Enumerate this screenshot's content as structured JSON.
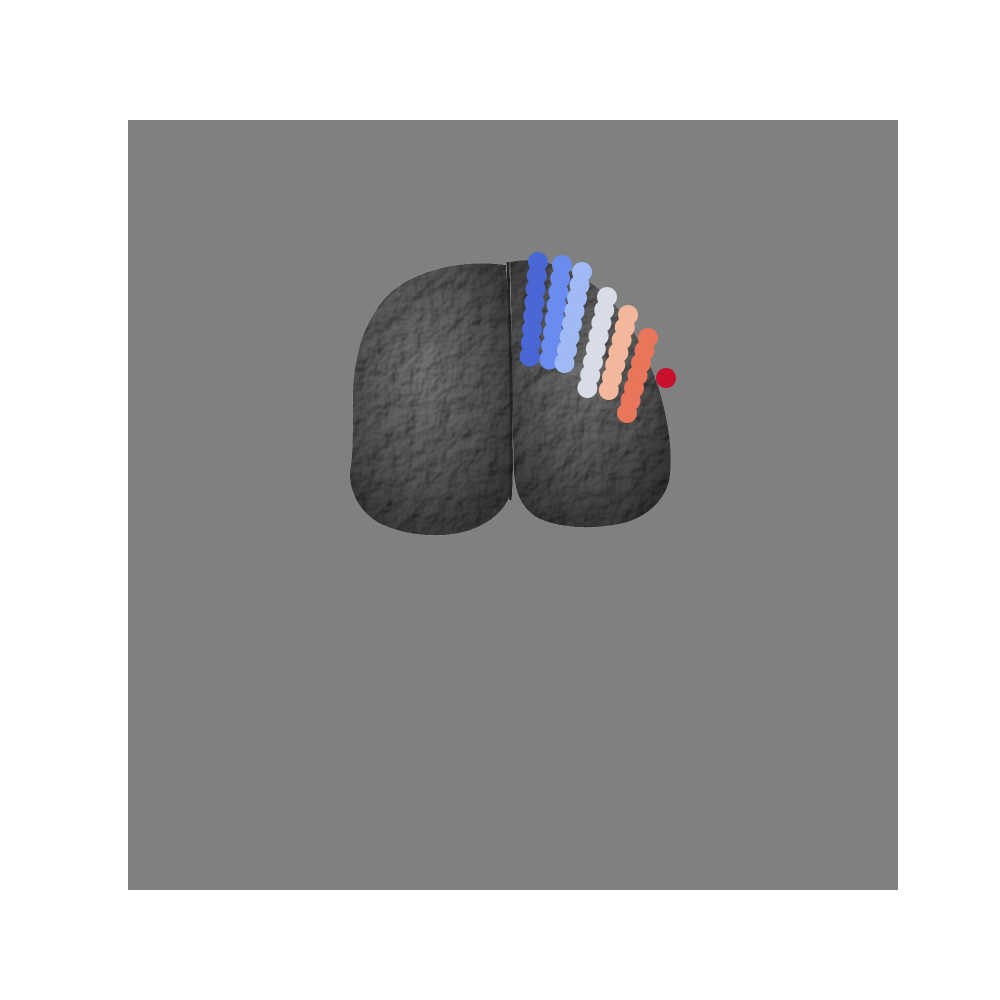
{
  "scene": {
    "background_color": "#808080",
    "page_color": "#ffffff",
    "brain_color": "#5e5e5e",
    "brain_shadow_color": "#3d3d3d",
    "brain_highlight_color": "#8a8a8a"
  },
  "electrodes": {
    "colormap": "coolwarm",
    "columns": [
      {
        "color": "#4a67d6",
        "contacts": 8
      },
      {
        "color": "#6a8cf0",
        "contacts": 8
      },
      {
        "color": "#9fbaf5",
        "contacts": 8
      },
      {
        "color": "#d8dce6",
        "contacts": 8
      },
      {
        "color": "#f3b79c",
        "contacts": 7
      },
      {
        "color": "#e8765a",
        "contacts": 7
      },
      {
        "color": "#c8102e",
        "contacts": 1
      }
    ]
  }
}
